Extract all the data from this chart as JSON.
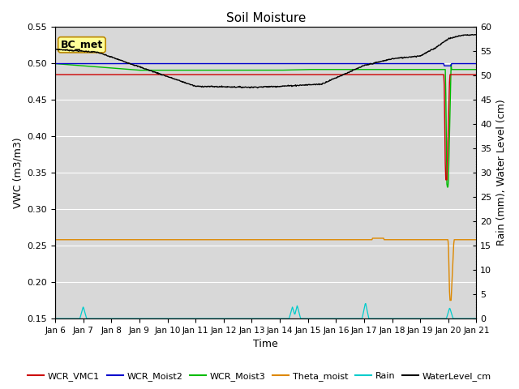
{
  "title": "Soil Moisture",
  "xlabel": "Time",
  "ylabel_left": "VWC (m3/m3)",
  "ylabel_right": "Rain (mm), Water Level (cm)",
  "ylim_left": [
    0.15,
    0.55
  ],
  "ylim_right": [
    0,
    60
  ],
  "yticks_left": [
    0.15,
    0.2,
    0.25,
    0.3,
    0.35,
    0.4,
    0.45,
    0.5,
    0.55
  ],
  "yticks_right": [
    0,
    5,
    10,
    15,
    20,
    25,
    30,
    35,
    40,
    45,
    50,
    55,
    60
  ],
  "date_labels": [
    "Jan 6",
    "Jan 7",
    "Jan 8",
    "Jan 9",
    "Jan 10",
    "Jan 11",
    "Jan 12",
    "Jan 13",
    "Jan 14",
    "Jan 15",
    "Jan 16",
    "Jan 17",
    "Jan 18",
    "Jan 19",
    "Jan 20",
    "Jan 21"
  ],
  "annotation_box": "BC_met",
  "annotation_box_facecolor": "#FFFF99",
  "annotation_box_edgecolor": "#BB8800",
  "colors": {
    "WCR_VMC1": "#cc0000",
    "WCR_Moist2": "#0000cc",
    "WCR_Moist3": "#00bb00",
    "Theta_moist": "#dd8800",
    "Rain": "#00cccc",
    "WaterLevel_cm": "#000000"
  },
  "background_color": "#d8d8d8",
  "grid_color": "#ffffff",
  "title_fontsize": 11,
  "axis_label_fontsize": 9,
  "tick_fontsize": 8,
  "legend_fontsize": 8
}
